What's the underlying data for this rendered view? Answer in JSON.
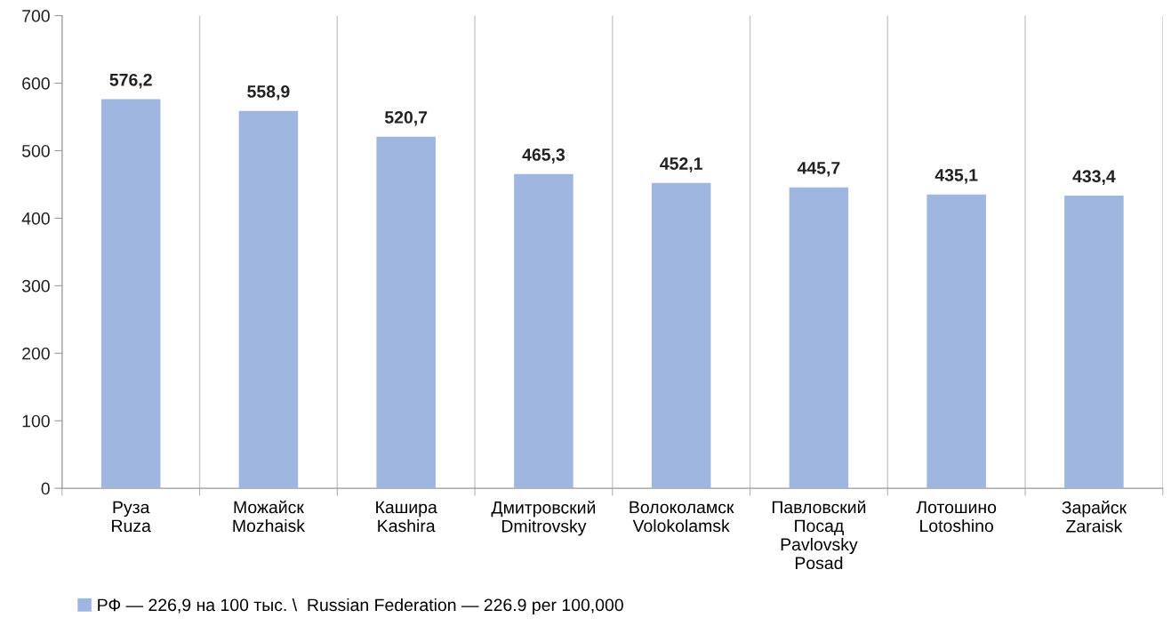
{
  "chart_data": {
    "type": "bar",
    "categories": [
      "Руза\nRuza",
      "Можайск\nMozhaisk",
      "Кашира\nKashira",
      "Дмитровский\nDmitrovsky",
      "Волоколамск\nVolokolamsk",
      "Павловский\nПосад\nPavlovsky\nPosad",
      "Лотошино\nLotoshino",
      "Зарайск\nZaraisk"
    ],
    "series": [
      {
        "name": "РФ — 226,9 на 100 тыс. \\  Russian Federation — 226.9 per 100,000",
        "color": "#9fb6e0",
        "values": [
          576.2,
          558.9,
          520.7,
          465.3,
          452.1,
          445.7,
          435.1,
          433.4
        ],
        "value_labels": [
          "576,2",
          "558,9",
          "520,7",
          "465,3",
          "452,1",
          "445,7",
          "435,1",
          "433,4"
        ]
      }
    ],
    "ylim": [
      0,
      700
    ],
    "yticks": [
      0,
      100,
      200,
      300,
      400,
      500,
      600,
      700
    ],
    "grid": "x",
    "legend": "bottom left"
  }
}
